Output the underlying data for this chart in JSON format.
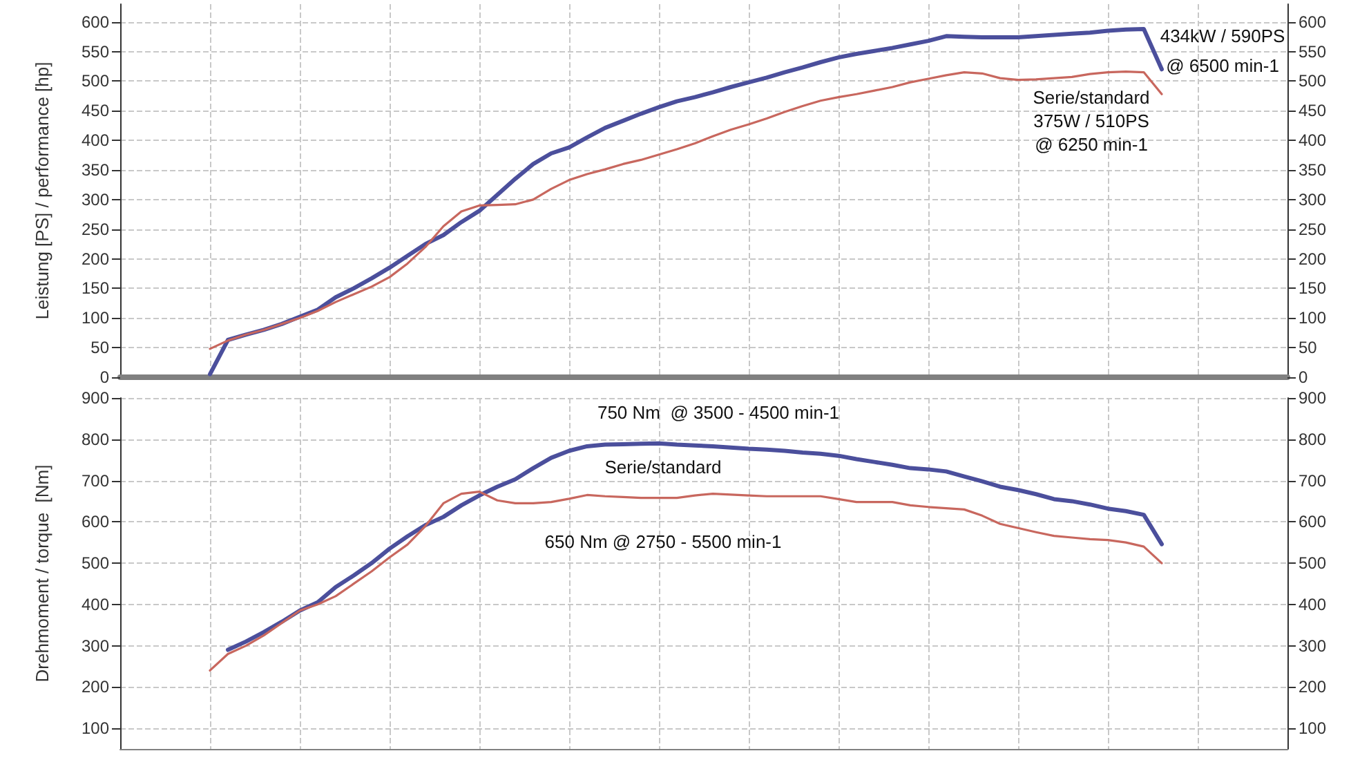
{
  "chart_data": [
    {
      "type": "line",
      "ylabel": "Leistung [PS] / performance [hp]",
      "annotations": [
        "434kW / 590PS\n@ 6500 min-1",
        "Serie/standard\n375W / 510PS\n@ 6250 min-1"
      ],
      "categories": [
        null,
        null,
        null,
        null,
        null,
        null,
        null,
        null,
        null,
        null,
        null,
        null,
        null,
        null,
        null,
        null,
        null,
        null,
        null,
        null,
        null,
        null,
        null,
        null,
        null,
        null,
        null,
        null,
        null,
        null,
        null,
        null,
        null,
        null,
        null,
        null,
        null,
        null,
        null,
        null,
        null,
        null,
        null,
        null,
        null,
        null,
        null,
        null,
        null,
        null,
        null,
        null,
        null,
        null,
        null,
        null,
        null,
        null,
        null,
        null,
        null,
        null,
        null,
        null,
        null,
        null
      ],
      "series": [
        {
          "color": "#4b4f9c",
          "values": [
            null,
            null,
            null,
            null,
            null,
            5,
            63,
            72,
            80,
            90,
            102,
            114,
            135,
            150,
            167,
            185,
            205,
            225,
            240,
            262,
            281,
            308,
            335,
            360,
            378,
            388,
            405,
            421,
            433,
            445,
            456,
            466,
            473,
            481,
            490,
            498,
            506,
            515,
            523,
            532,
            540,
            546,
            551,
            556,
            562,
            568,
            576,
            575,
            574,
            574,
            574,
            576,
            578,
            580,
            582,
            585,
            587,
            588,
            520,
            null,
            null,
            null,
            null,
            null,
            null,
            null
          ]
        },
        {
          "color": "#c8675e",
          "values": [
            null,
            null,
            null,
            null,
            null,
            48,
            62,
            72,
            80,
            90,
            100,
            112,
            127,
            140,
            153,
            169,
            192,
            220,
            255,
            280,
            290,
            291,
            292,
            300,
            318,
            333,
            343,
            351,
            360,
            367,
            376,
            385,
            395,
            407,
            418,
            427,
            437,
            448,
            458,
            467,
            473,
            478,
            484,
            490,
            498,
            504,
            510,
            515,
            513,
            505,
            502,
            503,
            505,
            507,
            512,
            515,
            516,
            515,
            478,
            null,
            null,
            null,
            null,
            null,
            null,
            null
          ]
        }
      ],
      "ylim": [
        0,
        630
      ],
      "yticks": [
        0,
        50,
        100,
        150,
        200,
        250,
        300,
        350,
        400,
        450,
        500,
        550,
        600
      ],
      "y2lim": [
        0,
        630
      ],
      "y2ticks": [
        0,
        50,
        100,
        150,
        200,
        250,
        300,
        350,
        400,
        450,
        500,
        550,
        600
      ],
      "grid": true,
      "marker": "none",
      "line_style": "solid"
    },
    {
      "type": "line",
      "ylabel": "Drehmoment / torque  [Nm]",
      "annotations": [
        "750 Nm  @ 3500 - 4500 min-1",
        "Serie/standard\n650 Nm @ 2750 - 5500 min-1"
      ],
      "categories": [
        null,
        null,
        null,
        null,
        null,
        null,
        null,
        null,
        null,
        null,
        null,
        null,
        null,
        null,
        null,
        null,
        null,
        null,
        null,
        null,
        null,
        null,
        null,
        null,
        null,
        null,
        null,
        null,
        null,
        null,
        null,
        null,
        null,
        null,
        null,
        null,
        null,
        null,
        null,
        null,
        null,
        null,
        null,
        null,
        null,
        null,
        null,
        null,
        null,
        null,
        null,
        null,
        null,
        null,
        null,
        null,
        null,
        null,
        null,
        null,
        null,
        null,
        null,
        null,
        null,
        null
      ],
      "series": [
        {
          "color": "#4b4f9c",
          "values": [
            null,
            null,
            null,
            null,
            null,
            null,
            290,
            310,
            333,
            358,
            385,
            405,
            442,
            470,
            500,
            535,
            565,
            592,
            612,
            640,
            664,
            685,
            703,
            730,
            755,
            772,
            783,
            787,
            788,
            789,
            790,
            787,
            785,
            783,
            780,
            777,
            775,
            772,
            768,
            765,
            760,
            752,
            745,
            738,
            730,
            727,
            722,
            710,
            698,
            685,
            677,
            667,
            655,
            650,
            642,
            632,
            626,
            617,
            546,
            null,
            null,
            null,
            null,
            null,
            null,
            null
          ]
        },
        {
          "color": "#c8675e",
          "values": [
            null,
            null,
            null,
            null,
            null,
            240,
            280,
            300,
            325,
            355,
            385,
            400,
            420,
            450,
            480,
            514,
            545,
            590,
            645,
            668,
            673,
            652,
            645,
            645,
            648,
            656,
            665,
            662,
            660,
            658,
            658,
            658,
            664,
            668,
            666,
            664,
            662,
            662,
            662,
            662,
            655,
            648,
            648,
            648,
            640,
            636,
            633,
            630,
            615,
            595,
            585,
            575,
            566,
            562,
            558,
            556,
            550,
            540,
            500,
            null,
            null,
            null,
            null,
            null,
            null,
            null
          ]
        }
      ],
      "ylim": [
        50,
        900
      ],
      "yticks": [
        100,
        200,
        300,
        400,
        500,
        600,
        700,
        800,
        900
      ],
      "y2lim": [
        50,
        900
      ],
      "y2ticks": [
        100,
        200,
        300,
        400,
        500,
        600,
        700,
        800,
        900
      ],
      "grid": true,
      "marker": "none",
      "line_style": "solid"
    }
  ]
}
